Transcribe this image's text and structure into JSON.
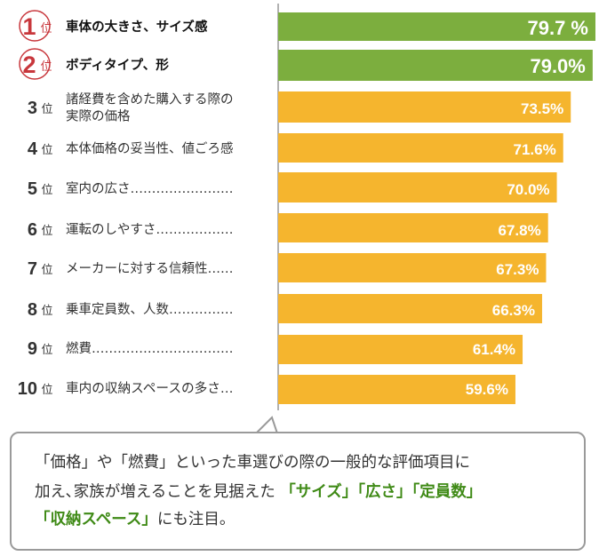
{
  "chart_data": {
    "type": "bar",
    "orientation": "horizontal",
    "categories": [
      "車体の大きさ、サイズ感",
      "ボディタイプ、形",
      "諸経費を含めた購入する際の実際の価格",
      "本体価格の妥当性、値ごろ感",
      "室内の広さ",
      "運転のしやすさ",
      "メーカーに対する信頼性",
      "乗車定員数、人数",
      "燃費",
      "車内の収納スペースの多さ"
    ],
    "values": [
      79.7,
      79.0,
      73.5,
      71.6,
      70.0,
      67.8,
      67.3,
      66.3,
      61.4,
      59.6
    ],
    "data_labels": [
      "79.7 %",
      "79.0%",
      "73.5%",
      "71.6%",
      "70.0%",
      "67.8%",
      "67.3%",
      "66.3%",
      "61.4%",
      "59.6%"
    ],
    "rank_numbers": [
      "1",
      "2",
      "3",
      "4",
      "5",
      "6",
      "7",
      "8",
      "9",
      "10"
    ],
    "rank_suffix": "位",
    "label_lines": [
      [
        "車体の大きさ、サイズ感"
      ],
      [
        "ボディタイプ、形"
      ],
      [
        "諸経費を含めた購入する際の",
        "実際の価格"
      ],
      [
        "本体価格の妥当性、値ごろ感"
      ],
      [
        "室内の広さ……………………"
      ],
      [
        "運転のしやすさ………………"
      ],
      [
        "メーカーに対する信頼性……"
      ],
      [
        "乗車定員数、人数……………"
      ],
      [
        "燃費……………………………"
      ],
      [
        "車内の収納スペースの多さ…"
      ]
    ],
    "xlim": [
      0,
      79.7
    ],
    "grid": false,
    "colors": {
      "top": "#7cae3e",
      "other": "#f5b52e",
      "rank_circle": "#c8373c",
      "axis": "#666666",
      "label": "#333333"
    }
  },
  "callout": {
    "line1": "「価格」や「燃費」といった車選びの際の一般的な評価項目に",
    "line2_plain": "加え､家族が増えることを見据えた ",
    "line2_highlight": "「サイズ」「広さ」「定員数」",
    "line3_highlight": "「収納スペース」",
    "line3_plain": "にも注目。"
  }
}
